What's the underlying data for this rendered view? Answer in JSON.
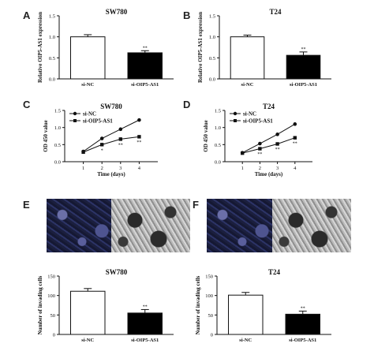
{
  "panels": {
    "A": "A",
    "B": "B",
    "C": "C",
    "D": "D",
    "E": "E",
    "F": "F"
  },
  "chart_data": [
    {
      "id": "A",
      "type": "bar",
      "title": "SW780",
      "ylabel": "Relative OIP5-AS1 expression",
      "categories": [
        "si-NC",
        "si-OIP5-AS1"
      ],
      "values": [
        1.0,
        0.62
      ],
      "errors": [
        0.05,
        0.05
      ],
      "fills": [
        "#ffffff",
        "#000000"
      ],
      "significance": [
        "",
        "**"
      ],
      "ylim": [
        0,
        1.5
      ],
      "yticks": [
        "0.0",
        "0.5",
        "1.0",
        "1.5"
      ]
    },
    {
      "id": "B",
      "type": "bar",
      "title": "T24",
      "ylabel": "Relative OIP5-AS1 expression",
      "categories": [
        "si-NC",
        "si-OIP5-AS1"
      ],
      "values": [
        1.0,
        0.56
      ],
      "errors": [
        0.04,
        0.08
      ],
      "fills": [
        "#ffffff",
        "#000000"
      ],
      "significance": [
        "",
        "**"
      ],
      "ylim": [
        0,
        1.5
      ],
      "yticks": [
        "0.0",
        "0.5",
        "1.0",
        "1.5"
      ]
    },
    {
      "id": "C",
      "type": "line",
      "title": "SW780",
      "xlabel": "Time (days)",
      "ylabel": "OD 450 value",
      "x": [
        1,
        2,
        3,
        4
      ],
      "xticks": [
        "1",
        "2",
        "3",
        "4"
      ],
      "series": [
        {
          "name": "si-NC",
          "values": [
            0.3,
            0.68,
            0.95,
            1.22
          ],
          "errors": [
            0.03,
            0.05,
            0.05,
            0.05
          ],
          "marker": "circle"
        },
        {
          "name": "si-OIP5-AS1",
          "values": [
            0.28,
            0.5,
            0.66,
            0.73
          ],
          "errors": [
            0.03,
            0.05,
            0.05,
            0.04
          ],
          "marker": "square"
        }
      ],
      "significance": [
        "",
        "*",
        "**",
        "**"
      ],
      "ylim": [
        0,
        1.5
      ],
      "yticks": [
        "0.0",
        "0.5",
        "1.0",
        "1.5"
      ],
      "legend": "top-left"
    },
    {
      "id": "D",
      "type": "line",
      "title": "T24",
      "xlabel": "Time (days)",
      "ylabel": "OD 450 value",
      "x": [
        1,
        2,
        3,
        4
      ],
      "xticks": [
        "1",
        "2",
        "3",
        "4"
      ],
      "series": [
        {
          "name": "si-NC",
          "values": [
            0.26,
            0.53,
            0.8,
            1.1
          ],
          "errors": [
            0.02,
            0.03,
            0.03,
            0.05
          ],
          "marker": "circle"
        },
        {
          "name": "si-OIP5-AS1",
          "values": [
            0.25,
            0.38,
            0.52,
            0.7
          ],
          "errors": [
            0.02,
            0.03,
            0.03,
            0.04
          ],
          "marker": "square"
        }
      ],
      "significance": [
        "",
        "**",
        "**",
        "**"
      ],
      "ylim": [
        0,
        1.5
      ],
      "yticks": [
        "0.0",
        "0.5",
        "1.0",
        "1.5"
      ],
      "legend": "top-left"
    },
    {
      "id": "E",
      "type": "bar",
      "title": "SW780",
      "ylabel": "Number of invading cells",
      "categories": [
        "si-NC",
        "si-OIP5-AS1"
      ],
      "values": [
        111,
        55
      ],
      "errors": [
        7,
        9
      ],
      "fills": [
        "#ffffff",
        "#000000"
      ],
      "significance": [
        "",
        "**"
      ],
      "ylim": [
        0,
        150
      ],
      "yticks": [
        "0",
        "50",
        "100",
        "150"
      ]
    },
    {
      "id": "F",
      "type": "bar",
      "title": "T24",
      "ylabel": "Number of invading cells",
      "categories": [
        "si-NC",
        "si-OIP5-AS1"
      ],
      "values": [
        101,
        52
      ],
      "errors": [
        7,
        8
      ],
      "fills": [
        "#ffffff",
        "#000000"
      ],
      "significance": [
        "",
        "**"
      ],
      "ylim": [
        0,
        150
      ],
      "yticks": [
        "0",
        "50",
        "100",
        "150"
      ]
    }
  ]
}
